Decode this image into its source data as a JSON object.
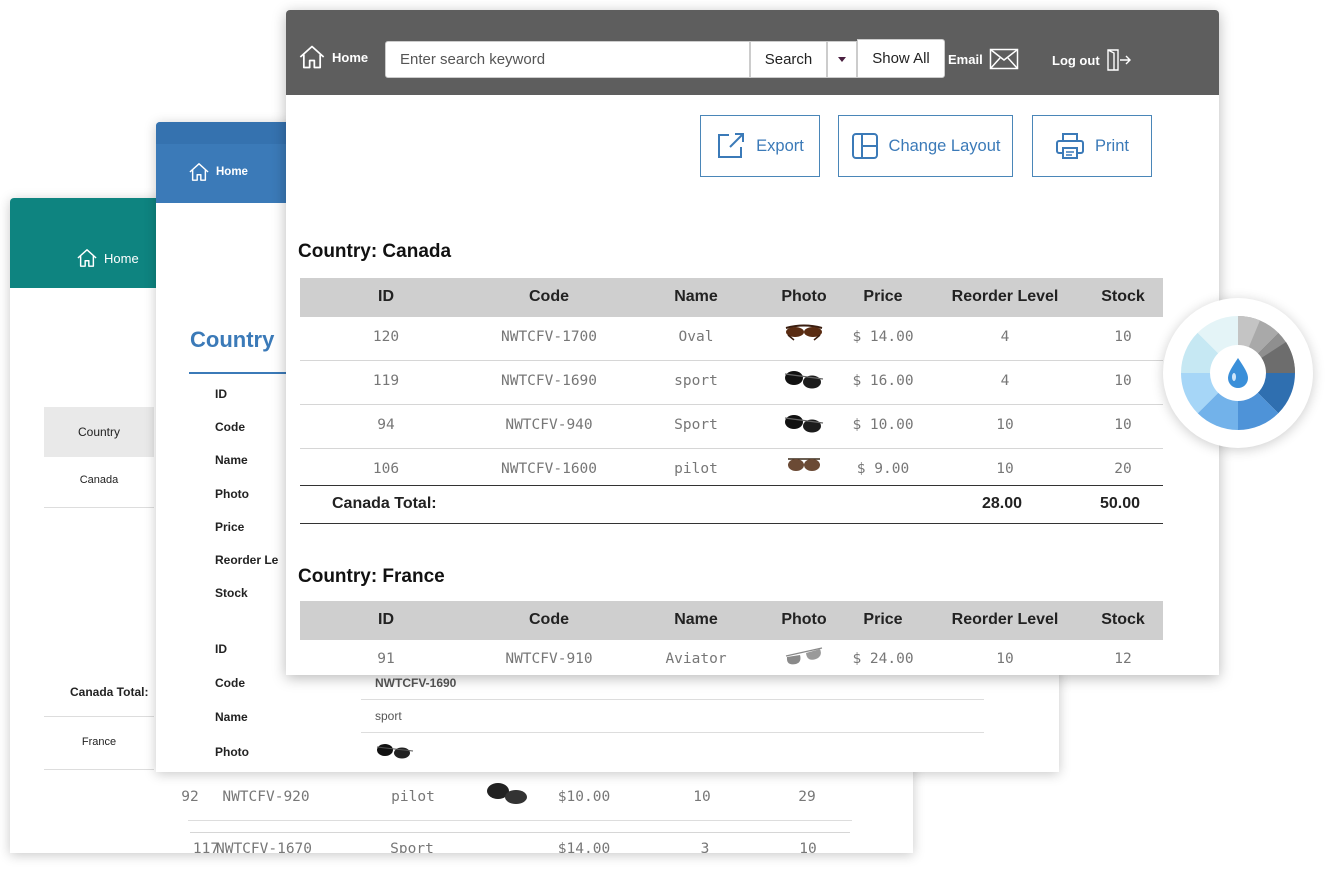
{
  "back_card": {
    "home_label": "Home",
    "column_header": "Country",
    "country_1": "Canada",
    "total_label": "Canada Total:",
    "country_2": "France",
    "rows": [
      {
        "id": "92",
        "code": "NWTCFV-920",
        "name": "pilot",
        "price": "$10.00",
        "reorder": "10",
        "stock": "29"
      },
      {
        "id": "117",
        "code": "NWTCFV-1670",
        "name": "Sport",
        "price": "$14.00",
        "reorder": "3",
        "stock": "10"
      }
    ]
  },
  "mid_card": {
    "home_label": "Home",
    "title": "Country",
    "labels": [
      "ID",
      "Code",
      "Name",
      "Photo",
      "Price",
      "Reorder Le",
      "Stock"
    ],
    "labels2": [
      "ID",
      "Code",
      "Name",
      "Photo"
    ],
    "values2": {
      "code": "NWTCFV-1690",
      "name": "sport"
    }
  },
  "front_card": {
    "home_label": "Home",
    "search": {
      "placeholder": "Enter search keyword",
      "button": "Search",
      "show_all": "Show All"
    },
    "email_label": "Email",
    "logout_label": "Log out",
    "toolbar": {
      "export": "Export",
      "change_layout": "Change Layout",
      "print": "Print"
    },
    "columns": [
      "ID",
      "Code",
      "Name",
      "Photo",
      "Price",
      "Reorder Level",
      "Stock"
    ],
    "groups": [
      {
        "title": "Country: Canada",
        "rows": [
          {
            "id": "120",
            "code": "NWTCFV-1700",
            "name": "Oval",
            "photo": "oval-sunglasses-icon",
            "price": "$ 14.00",
            "reorder": "4",
            "stock": "10"
          },
          {
            "id": "119",
            "code": "NWTCFV-1690",
            "name": "sport",
            "photo": "sport-sunglasses-icon",
            "price": "$ 16.00",
            "reorder": "4",
            "stock": "10"
          },
          {
            "id": "94",
            "code": "NWTCFV-940",
            "name": "Sport",
            "photo": "sport-sunglasses-icon",
            "price": "$ 10.00",
            "reorder": "10",
            "stock": "10"
          },
          {
            "id": "106",
            "code": "NWTCFV-1600",
            "name": "pilot",
            "photo": "pilot-sunglasses-icon",
            "price": "$ 9.00",
            "reorder": "10",
            "stock": "20"
          }
        ],
        "total": {
          "label": "Canada Total:",
          "reorder": "28.00",
          "stock": "50.00"
        }
      },
      {
        "title": "Country: France",
        "rows": [
          {
            "id": "91",
            "code": "NWTCFV-910",
            "name": "Aviator",
            "photo": "aviator-sunglasses-icon",
            "price": "$ 24.00",
            "reorder": "10",
            "stock": "12"
          }
        ]
      }
    ]
  },
  "colors": {
    "topbar": "#5e5e5e",
    "teal": "#0e8480",
    "blue": "#3b7ab8",
    "header_row": "#cfcfcf"
  }
}
